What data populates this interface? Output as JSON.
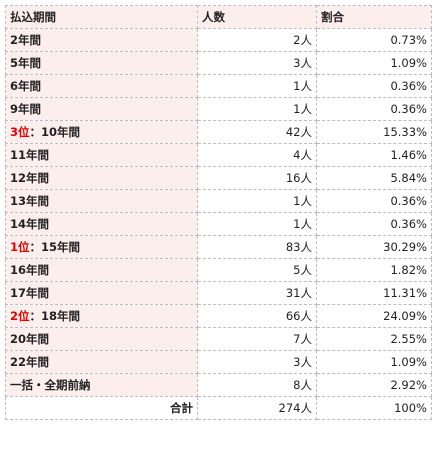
{
  "table": {
    "headers": [
      "払込期間",
      "人数",
      "割合"
    ],
    "accent_color": "#e60000",
    "header_bg": "#fdeeee",
    "rows": [
      {
        "rank": "",
        "label": "2年間",
        "count": "2人",
        "pct": "0.73%"
      },
      {
        "rank": "",
        "label": "5年間",
        "count": "3人",
        "pct": "1.09%"
      },
      {
        "rank": "",
        "label": "6年間",
        "count": "1人",
        "pct": "0.36%"
      },
      {
        "rank": "",
        "label": "9年間",
        "count": "1人",
        "pct": "0.36%"
      },
      {
        "rank": "3位",
        "label": "：10年間",
        "count": "42人",
        "pct": "15.33%"
      },
      {
        "rank": "",
        "label": "11年間",
        "count": "4人",
        "pct": "1.46%"
      },
      {
        "rank": "",
        "label": "12年間",
        "count": "16人",
        "pct": "5.84%"
      },
      {
        "rank": "",
        "label": "13年間",
        "count": "1人",
        "pct": "0.36%"
      },
      {
        "rank": "",
        "label": "14年間",
        "count": "1人",
        "pct": "0.36%"
      },
      {
        "rank": "1位",
        "label": "：15年間",
        "count": "83人",
        "pct": "30.29%"
      },
      {
        "rank": "",
        "label": "16年間",
        "count": "5人",
        "pct": "1.82%"
      },
      {
        "rank": "",
        "label": "17年間",
        "count": "31人",
        "pct": "11.31%"
      },
      {
        "rank": "2位",
        "label": "：18年間",
        "count": "66人",
        "pct": "24.09%"
      },
      {
        "rank": "",
        "label": "20年間",
        "count": "7人",
        "pct": "2.55%"
      },
      {
        "rank": "",
        "label": "22年間",
        "count": "3人",
        "pct": "1.09%"
      },
      {
        "rank": "",
        "label": "一括・全期前納",
        "count": "8人",
        "pct": "2.92%"
      }
    ],
    "total": {
      "label": "合計",
      "count": "274人",
      "pct": "100%"
    }
  }
}
